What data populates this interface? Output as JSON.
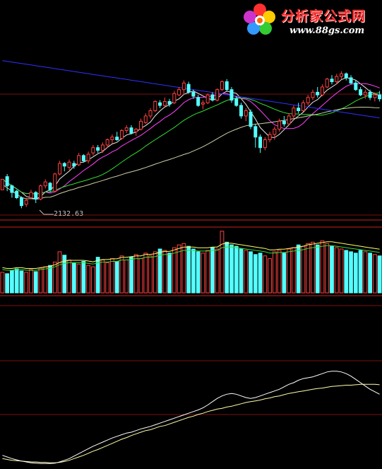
{
  "branding": {
    "title": "分析家公式网",
    "url": "www.88gs.com"
  },
  "chart_data": [
    {
      "type": "candlestick",
      "panel": "price",
      "low_marker": {
        "text": "2132.63",
        "value": 2132.63
      },
      "colors": {
        "up": "#ff4040",
        "down": "#55ffff",
        "ma_white": "#e8e8e8",
        "ma_yellow": "#ffff66",
        "ma_magenta": "#ff44ff",
        "ma_green": "#33dd33",
        "ma_blue": "#3030ff",
        "ma_long": "#cfcfa8"
      },
      "ohlc_bars": [
        [
          52,
          60,
          52,
          60
        ],
        [
          62,
          55,
          51,
          64
        ],
        [
          55,
          50,
          46,
          56
        ],
        [
          51,
          46,
          45,
          52
        ],
        [
          46,
          40,
          38,
          47
        ],
        [
          41,
          44,
          39,
          46
        ],
        [
          46,
          50,
          45,
          52
        ],
        [
          50,
          45,
          42,
          51
        ],
        [
          45,
          55,
          44,
          56
        ],
        [
          55,
          58,
          53,
          60
        ],
        [
          57,
          52,
          50,
          58
        ],
        [
          51,
          64,
          50,
          65
        ],
        [
          64,
          72,
          63,
          74
        ],
        [
          72,
          70,
          66,
          73
        ],
        [
          69,
          73,
          67,
          75
        ],
        [
          72,
          70,
          68,
          74
        ],
        [
          71,
          78,
          70,
          80
        ],
        [
          78,
          74,
          73,
          79
        ],
        [
          74,
          79,
          72,
          81
        ],
        [
          80,
          84,
          78,
          86
        ],
        [
          84,
          82,
          80,
          86
        ],
        [
          82,
          86,
          80,
          88
        ],
        [
          86,
          90,
          84,
          91
        ],
        [
          90,
          92,
          87,
          94
        ],
        [
          92,
          90,
          89,
          96
        ],
        [
          91,
          97,
          90,
          98
        ],
        [
          97,
          99,
          95,
          101
        ],
        [
          99,
          95,
          94,
          101
        ],
        [
          96,
          98,
          93,
          99
        ],
        [
          98,
          104,
          97,
          106
        ],
        [
          103,
          108,
          102,
          110
        ],
        [
          108,
          112,
          106,
          114
        ],
        [
          112,
          119,
          111,
          120
        ],
        [
          118,
          116,
          114,
          120
        ],
        [
          116,
          119,
          115,
          122
        ],
        [
          119,
          117,
          115,
          121
        ],
        [
          118,
          125,
          117,
          127
        ],
        [
          124,
          128,
          123,
          130
        ],
        [
          128,
          133,
          124,
          135
        ],
        [
          132,
          126,
          125,
          134
        ],
        [
          126,
          123,
          121,
          128
        ],
        [
          122,
          116,
          115,
          124
        ],
        [
          117,
          118,
          113,
          120
        ],
        [
          118,
          124,
          117,
          125
        ],
        [
          124,
          120,
          119,
          126
        ],
        [
          120,
          128,
          119,
          129
        ],
        [
          128,
          134,
          127,
          135
        ],
        [
          134,
          128,
          127,
          136
        ],
        [
          128,
          120,
          118,
          130
        ],
        [
          121,
          116,
          115,
          123
        ],
        [
          116,
          108,
          106,
          118
        ],
        [
          108,
          112,
          104,
          114
        ],
        [
          111,
          100,
          98,
          113
        ],
        [
          100,
          92,
          84,
          102
        ],
        [
          92,
          84,
          80,
          94
        ],
        [
          84,
          90,
          82,
          92
        ],
        [
          90,
          94,
          88,
          96
        ],
        [
          94,
          98,
          90,
          100
        ],
        [
          98,
          104,
          96,
          106
        ],
        [
          104,
          102,
          100,
          108
        ],
        [
          102,
          108,
          101,
          110
        ],
        [
          108,
          114,
          106,
          116
        ],
        [
          114,
          112,
          110,
          118
        ],
        [
          112,
          118,
          111,
          120
        ],
        [
          118,
          122,
          116,
          124
        ],
        [
          122,
          126,
          120,
          128
        ],
        [
          126,
          124,
          122,
          130
        ],
        [
          124,
          130,
          123,
          132
        ],
        [
          130,
          136,
          129,
          137
        ],
        [
          136,
          134,
          132,
          139
        ],
        [
          134,
          138,
          132,
          140
        ],
        [
          138,
          140,
          136,
          142
        ],
        [
          140,
          137,
          135,
          141
        ],
        [
          137,
          133,
          132,
          139
        ],
        [
          133,
          128,
          127,
          135
        ],
        [
          128,
          124,
          123,
          130
        ],
        [
          124,
          126,
          121,
          128
        ],
        [
          126,
          122,
          120,
          128
        ],
        [
          122,
          124,
          119,
          126
        ],
        [
          124,
          121,
          119,
          127
        ]
      ]
    },
    {
      "type": "bar",
      "panel": "volume",
      "values": [
        30,
        28,
        33,
        35,
        32,
        30,
        34,
        31,
        36,
        38,
        40,
        45,
        60,
        55,
        48,
        44,
        42,
        46,
        40,
        38,
        52,
        48,
        44,
        50,
        46,
        54,
        48,
        52,
        56,
        50,
        58,
        54,
        60,
        64,
        62,
        58,
        66,
        70,
        72,
        68,
        64,
        60,
        58,
        62,
        66,
        64,
        90,
        74,
        70,
        68,
        64,
        62,
        60,
        56,
        58,
        54,
        50,
        60,
        62,
        58,
        64,
        66,
        70,
        68,
        72,
        74,
        70,
        76,
        72,
        68,
        66,
        64,
        62,
        60,
        58,
        62,
        60,
        58,
        56,
        54
      ],
      "ma_values": [
        34,
        33,
        33,
        34,
        34,
        33,
        33,
        33,
        34,
        35,
        36,
        38,
        41,
        43,
        44,
        44,
        44,
        44,
        43,
        42,
        44,
        45,
        45,
        46,
        46,
        48,
        48,
        49,
        50,
        50,
        52,
        52,
        53,
        55,
        56,
        56,
        58,
        60,
        62,
        62,
        62,
        61,
        61,
        61,
        62,
        62,
        66,
        67,
        67,
        66,
        65,
        64,
        63,
        62,
        61,
        60,
        58,
        58,
        59,
        59,
        60,
        61,
        62,
        63,
        65,
        66,
        67,
        68,
        69,
        69,
        68,
        67,
        66,
        65,
        64,
        63,
        62,
        61,
        60,
        59
      ]
    },
    {
      "type": "line",
      "panel": "indicator",
      "series": [
        {
          "values": [
            20,
            18,
            16,
            15,
            14,
            13,
            12,
            12,
            11,
            11,
            10,
            10,
            11,
            13,
            16,
            20,
            24,
            28,
            33,
            38,
            42,
            47,
            52,
            57,
            62,
            67,
            71,
            76,
            80,
            84,
            88,
            90,
            94,
            98,
            100,
            104,
            108,
            112,
            116,
            120,
            123,
            127,
            130,
            134,
            137,
            140,
            142,
            145,
            147,
            150,
            153,
            156,
            158,
            160,
            162,
            165,
            167,
            170,
            172,
            175,
            178,
            180,
            182,
            184,
            186,
            188,
            190,
            191,
            193,
            195,
            196,
            197,
            198,
            198,
            199,
            200,
            200,
            200,
            200,
            199
          ]
        },
        {
          "values": [
            28,
            24,
            20,
            17,
            14,
            12,
            10,
            9,
            8,
            8,
            8,
            9,
            12,
            16,
            20,
            26,
            32,
            38,
            44,
            50,
            55,
            60,
            65,
            70,
            74,
            78,
            82,
            84,
            88,
            92,
            95,
            98,
            102,
            106,
            110,
            114,
            118,
            122,
            126,
            130,
            134,
            138,
            143,
            150,
            158,
            166,
            172,
            176,
            178,
            176,
            172,
            168,
            166,
            168,
            172,
            176,
            180,
            184,
            188,
            194,
            200,
            204,
            210,
            214,
            216,
            218,
            222,
            226,
            230,
            232,
            232,
            230,
            226,
            220,
            212,
            204,
            196,
            188,
            182,
            176
          ]
        }
      ]
    }
  ]
}
